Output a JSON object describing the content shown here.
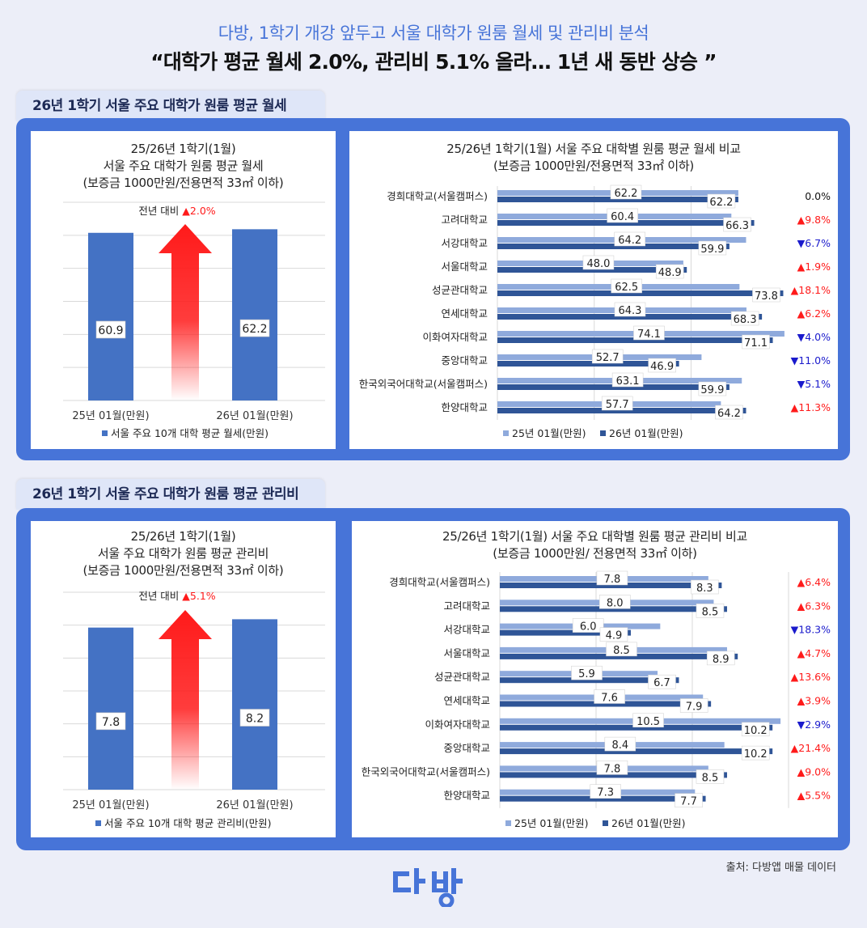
{
  "header": {
    "subtitle": "다방, 1학기 개강 앞두고 서울 대학가 원룸 월세 및 관리비 분석",
    "headline": "“대학가 평균 월세 2.0%, 관리비 5.1% 올라… 1년 새 동반 상승 ”"
  },
  "sections": [
    {
      "tab": "26년 1학기 서울 주요 대학가 원룸 평균 월세"
    },
    {
      "tab": "26년 1학기 서울 주요 대학가 원룸 평균 관리비"
    }
  ],
  "chart_data": [
    {
      "type": "bar",
      "title": [
        "25/26년 1학기(1월)",
        "서울 주요 대학가 원룸 평균 월세",
        "(보증금 1000만원/전용면적 33㎡ 이하)"
      ],
      "categories": [
        "25년 01월(만원)",
        "26년 01월(만원)"
      ],
      "values": [
        60.9,
        62.2
      ],
      "series_name": "서울 주요 10개 대학 평균 월세(만원)",
      "change_label": "전년 대비",
      "change_value": "▲2.0%",
      "color": "#4472c4",
      "arrow_color": "#ff1a1a",
      "grid": true
    },
    {
      "type": "bar",
      "orientation": "horizontal",
      "title": [
        "25/26년 1학기(1월) 서울 주요 대학별 원룸 평균 월세 비교",
        "(보증금 1000만원/전용면적 33㎡ 이하)"
      ],
      "categories": [
        "경희대학교(서울캠퍼스)",
        "고려대학교",
        "서강대학교",
        "서울대학교",
        "성균관대학교",
        "연세대학교",
        "이화여자대학교",
        "중앙대학교",
        "한국외국어대학교(서울캠퍼스)",
        "한양대학교"
      ],
      "series": [
        {
          "name": "25년 01월(만원)",
          "values": [
            62.2,
            60.4,
            64.2,
            48.0,
            62.5,
            64.3,
            74.1,
            52.7,
            63.1,
            57.7
          ],
          "color": "#8faadc"
        },
        {
          "name": "26년 01월(만원)",
          "values": [
            62.2,
            66.3,
            59.9,
            48.9,
            73.8,
            68.3,
            71.1,
            46.9,
            59.9,
            64.2
          ],
          "color": "#2f5597"
        }
      ],
      "changes": [
        "0.0%",
        "▲9.8%",
        "▼6.7%",
        "▲1.9%",
        "▲18.1%",
        "▲6.2%",
        "▼4.0%",
        "▼11.0%",
        "▼5.1%",
        "▲11.3%"
      ],
      "xlim": [
        0,
        76
      ],
      "grid": true
    },
    {
      "type": "bar",
      "title": [
        "25/26년 1학기(1월)",
        "서울 주요 대학가 원룸 평균 관리비",
        "(보증금 1000만원/전용면적 33㎡ 이하)"
      ],
      "categories": [
        "25년 01월(만원)",
        "26년 01월(만원)"
      ],
      "values": [
        7.8,
        8.2
      ],
      "series_name": "서울 주요 10개 대학 평균 관리비(만원)",
      "change_label": "전년 대비",
      "change_value": "▲5.1%",
      "color": "#4472c4",
      "arrow_color": "#ff1a1a",
      "grid": true
    },
    {
      "type": "bar",
      "orientation": "horizontal",
      "title": [
        "25/26년 1학기(1월) 서울 주요 대학별 원룸 평균 관리비 비교",
        "(보증금 1000만원/ 전용면적 33㎡ 이하)"
      ],
      "categories": [
        "경희대학교(서울캠퍼스)",
        "고려대학교",
        "서강대학교",
        "서울대학교",
        "성균관대학교",
        "연세대학교",
        "이화여자대학교",
        "중앙대학교",
        "한국외국어대학교(서울캠퍼스)",
        "한양대학교"
      ],
      "series": [
        {
          "name": "25년 01월(만원)",
          "values": [
            7.8,
            8.0,
            6.0,
            8.5,
            5.9,
            7.6,
            10.5,
            8.4,
            7.8,
            7.3
          ],
          "color": "#8faadc"
        },
        {
          "name": "26년 01월(만원)",
          "values": [
            8.3,
            8.5,
            4.9,
            8.9,
            6.7,
            7.9,
            10.2,
            10.2,
            8.5,
            7.7
          ],
          "color": "#2f5597"
        }
      ],
      "changes": [
        "▲6.4%",
        "▲6.3%",
        "▼18.3%",
        "▲4.7%",
        "▲13.6%",
        "▲3.9%",
        "▼2.9%",
        "▲21.4%",
        "▲9.0%",
        "▲5.5%"
      ],
      "xlim": [
        0,
        10.8
      ],
      "grid": true
    }
  ],
  "colors": {
    "up": "#ff1a1a",
    "down": "#1a1acc",
    "neutral": "#111111",
    "accent": "#4774d8"
  },
  "footer": {
    "source": "출처: 다방앱 매물 데이터",
    "logo": "다방",
    "logo_icon": "dabang-logo-icon"
  }
}
